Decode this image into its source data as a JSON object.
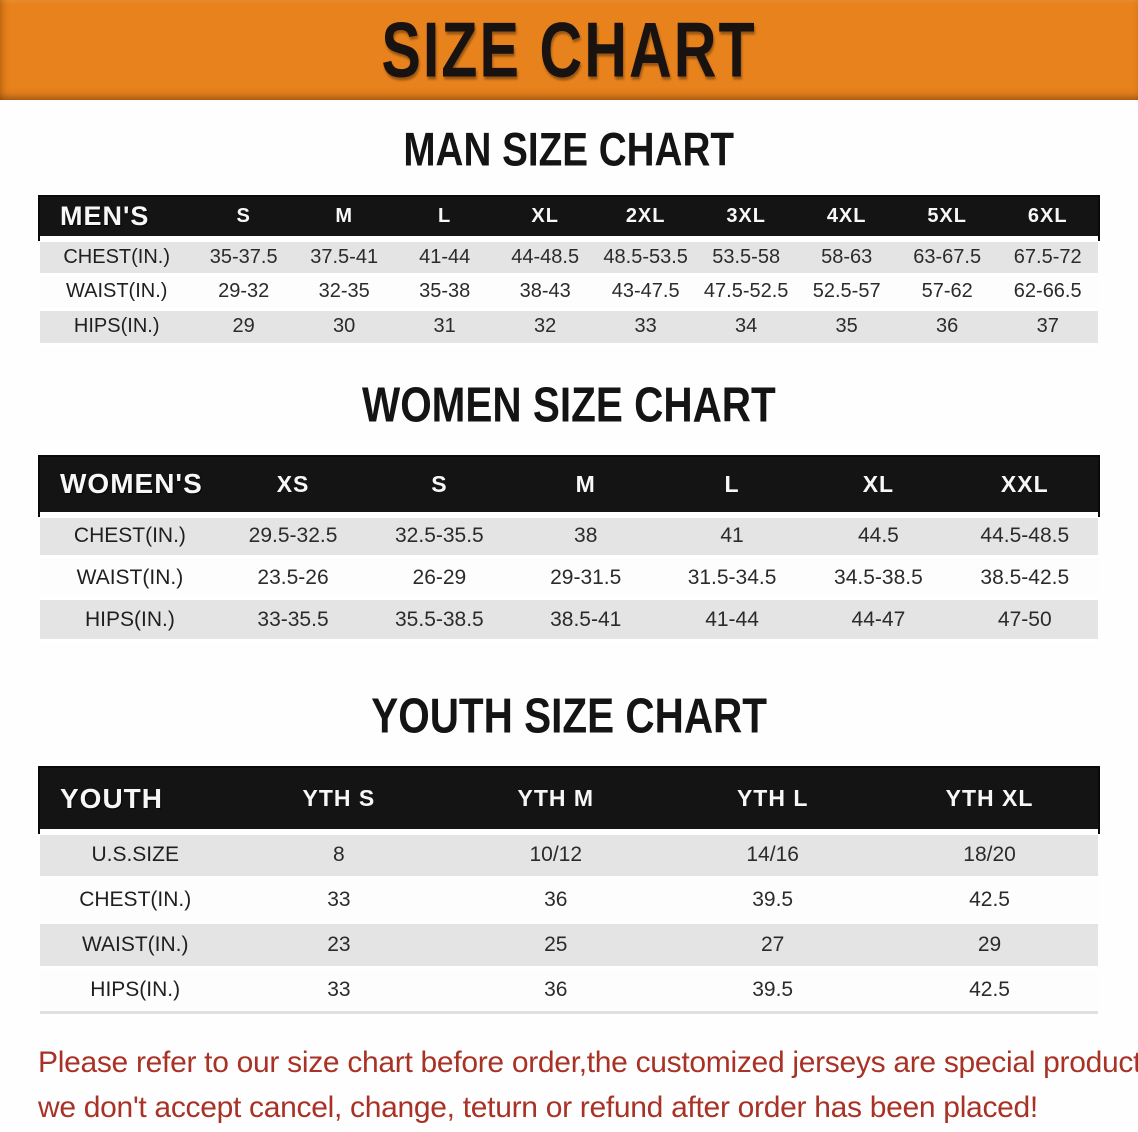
{
  "banner": {
    "title": "SIZE CHART"
  },
  "colors": {
    "banner_bg": "#E8821C",
    "banner_text": "#181210",
    "header_bg": "#141414",
    "header_text": "#F7F7F7",
    "row_gray": "#E4E4E4",
    "row_white": "#FDFDFD",
    "body_text": "#2B2B2B",
    "disclaimer_red": "#A93226"
  },
  "sections": [
    {
      "title": "MAN SIZE CHART",
      "table": {
        "header_label": "MEN'S",
        "columns": [
          "S",
          "M",
          "L",
          "XL",
          "2XL",
          "3XL",
          "4XL",
          "5XL",
          "6XL"
        ],
        "rows": [
          {
            "label": "CHEST(IN.)",
            "values": [
              "35-37.5",
              "37.5-41",
              "41-44",
              "44-48.5",
              "48.5-53.5",
              "53.5-58",
              "58-63",
              "63-67.5",
              "67.5-72"
            ]
          },
          {
            "label": "WAIST(IN.)",
            "values": [
              "29-32",
              "32-35",
              "35-38",
              "38-43",
              "43-47.5",
              "47.5-52.5",
              "52.5-57",
              "57-62",
              "62-66.5"
            ]
          },
          {
            "label": "HIPS(IN.)",
            "values": [
              "29",
              "30",
              "31",
              "32",
              "33",
              "34",
              "35",
              "36",
              "37"
            ]
          }
        ]
      }
    },
    {
      "title": "WOMEN SIZE CHART",
      "table": {
        "header_label": "WOMEN'S",
        "columns": [
          "XS",
          "S",
          "M",
          "L",
          "XL",
          "XXL"
        ],
        "rows": [
          {
            "label": "CHEST(IN.)",
            "values": [
              "29.5-32.5",
              "32.5-35.5",
              "38",
              "41",
              "44.5",
              "44.5-48.5"
            ]
          },
          {
            "label": "WAIST(IN.)",
            "values": [
              "23.5-26",
              "26-29",
              "29-31.5",
              "31.5-34.5",
              "34.5-38.5",
              "38.5-42.5"
            ]
          },
          {
            "label": "HIPS(IN.)",
            "values": [
              "33-35.5",
              "35.5-38.5",
              "38.5-41",
              "41-44",
              "44-47",
              "47-50"
            ]
          }
        ]
      }
    },
    {
      "title": "YOUTH SIZE CHART",
      "table": {
        "header_label": "YOUTH",
        "columns": [
          "YTH S",
          "YTH M",
          "YTH L",
          "YTH XL"
        ],
        "rows": [
          {
            "label": "U.S.SIZE",
            "values": [
              "8",
              "10/12",
              "14/16",
              "18/20"
            ]
          },
          {
            "label": "CHEST(IN.)",
            "values": [
              "33",
              "36",
              "39.5",
              "42.5"
            ]
          },
          {
            "label": "WAIST(IN.)",
            "values": [
              "23",
              "25",
              "27",
              "29"
            ]
          },
          {
            "label": "HIPS(IN.)",
            "values": [
              "33",
              "36",
              "39.5",
              "42.5"
            ]
          }
        ]
      }
    }
  ],
  "disclaimer": {
    "line1": "Please refer to our size chart before order,the customized jerseys are special products,",
    "line2": "we don't accept cancel, change, teturn or refund after order has been placed!"
  }
}
